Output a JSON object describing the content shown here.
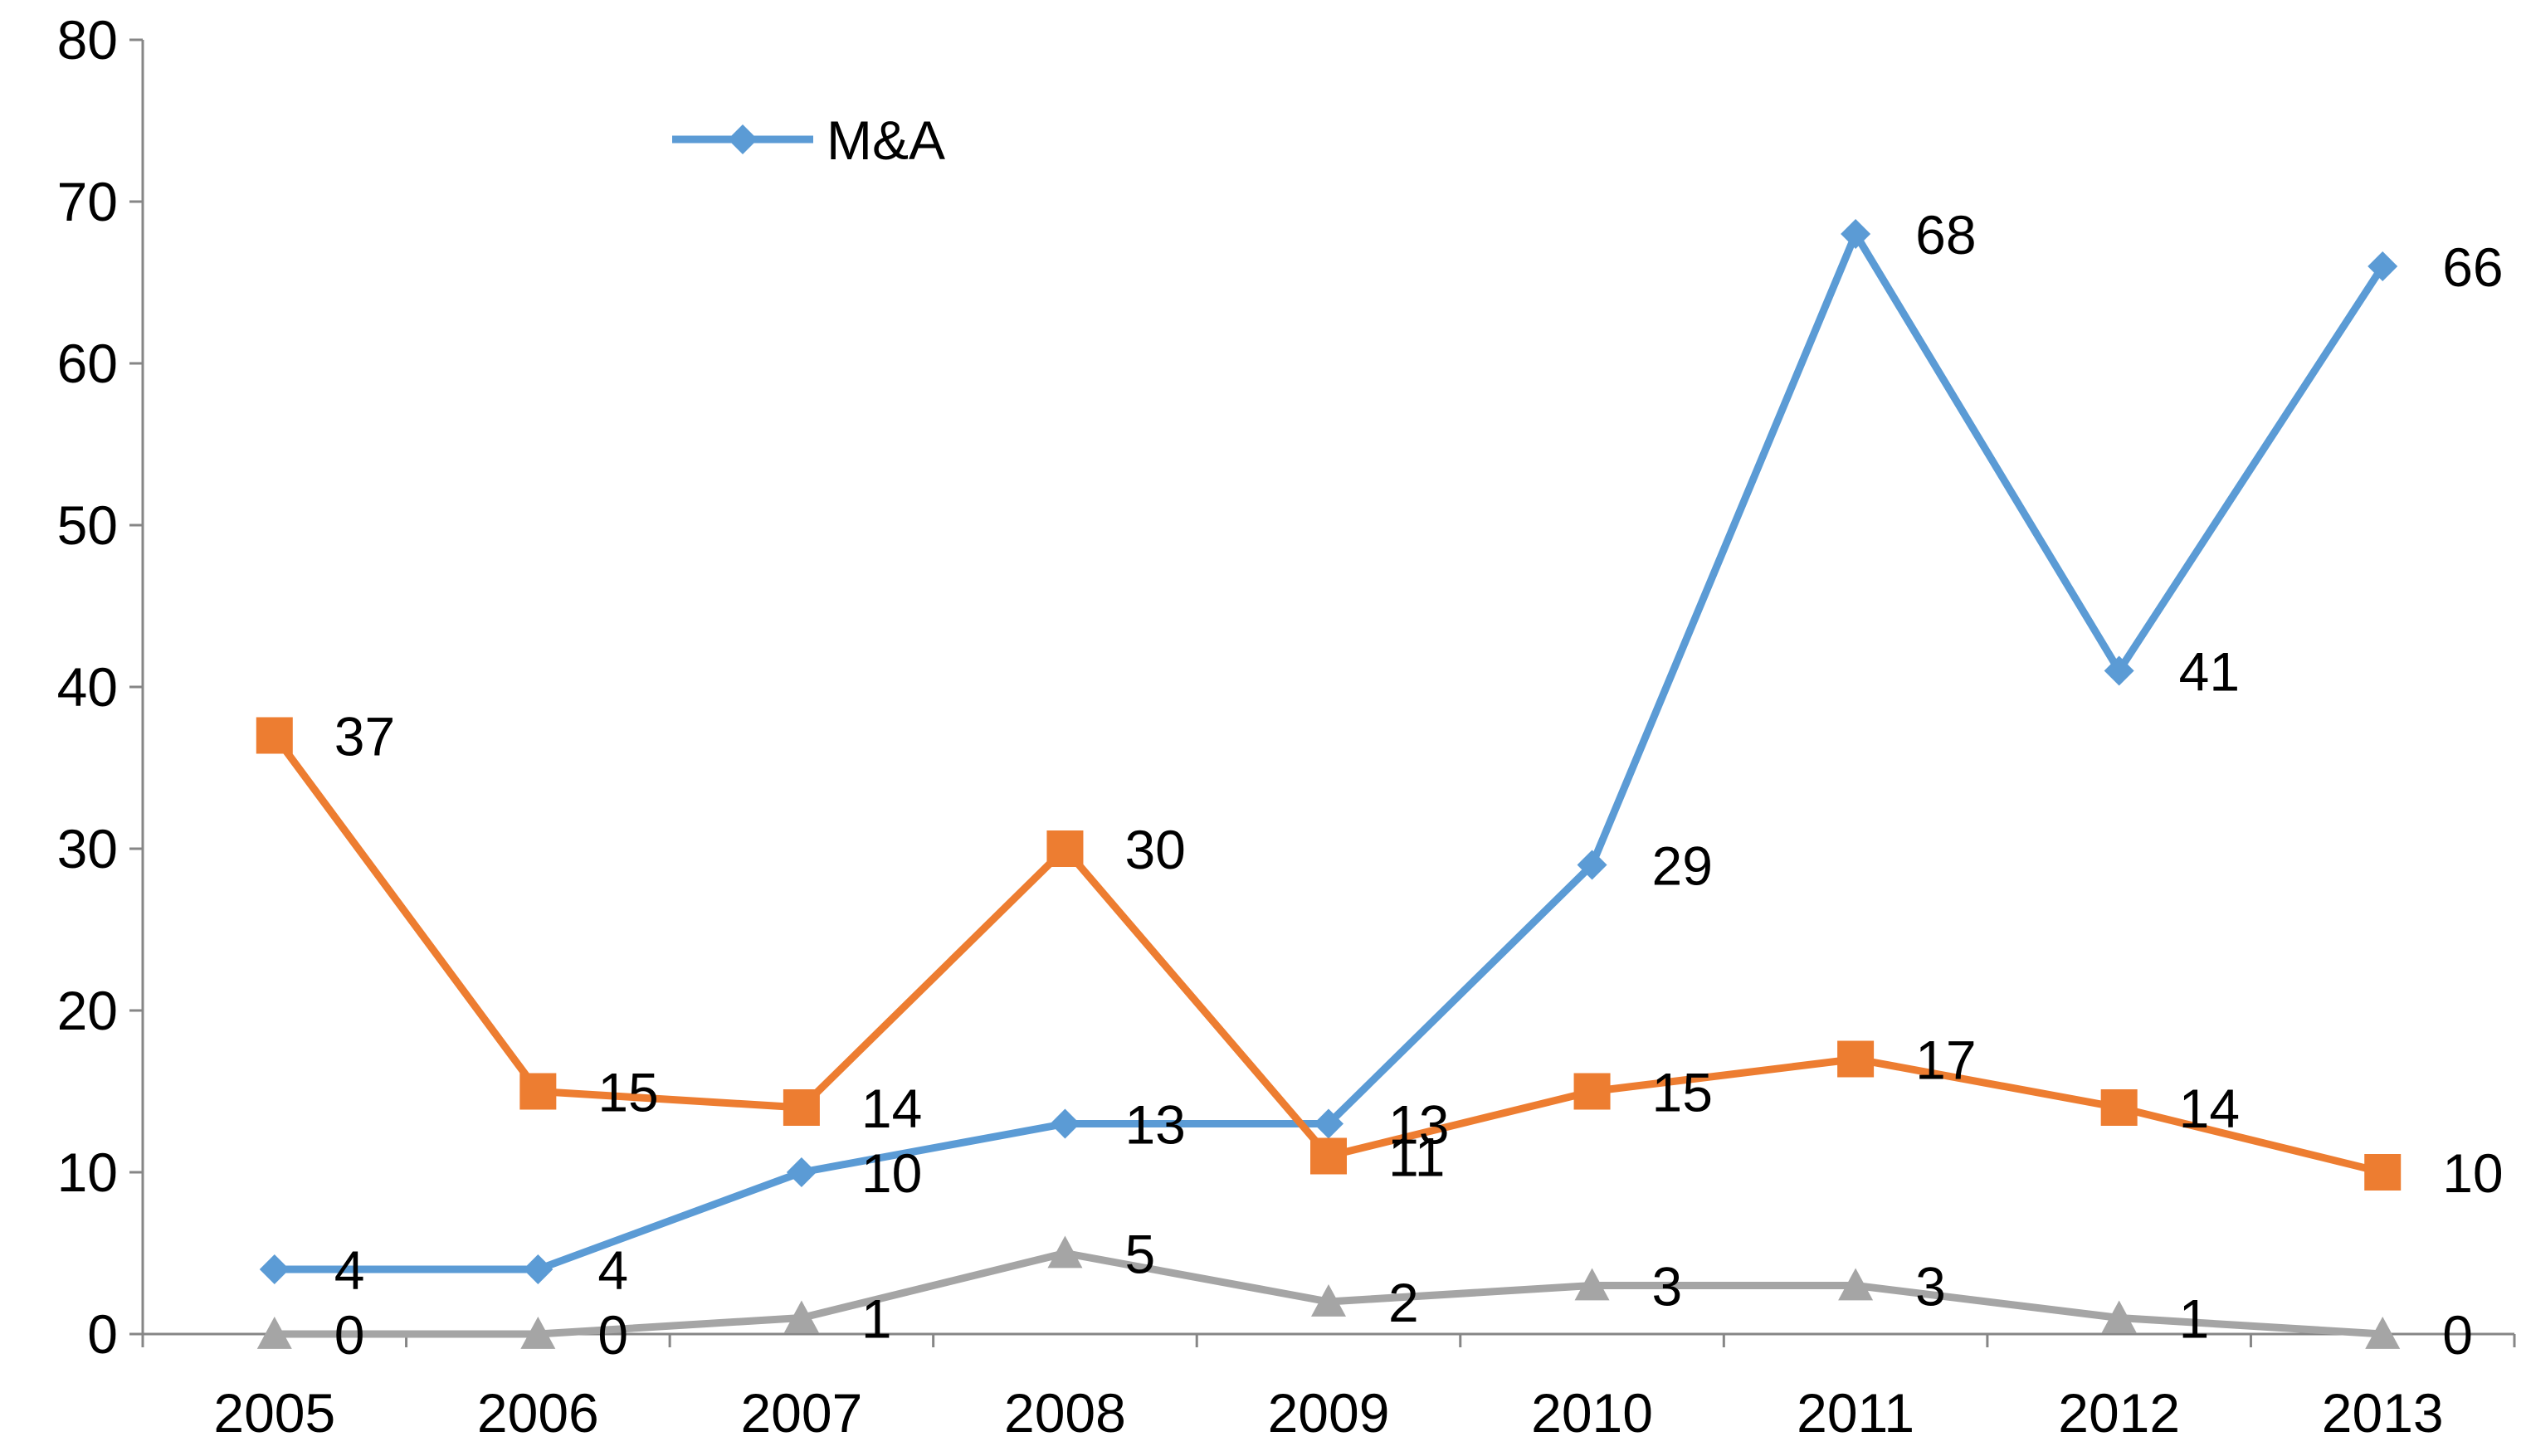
{
  "chart_data": {
    "type": "line",
    "title": "",
    "xlabel": "",
    "ylabel": "",
    "categories": [
      "2005",
      "2006",
      "2007",
      "2008",
      "2009",
      "2010",
      "2011",
      "2012",
      "2013"
    ],
    "ylim": [
      0,
      80
    ],
    "yticks": [
      0,
      10,
      20,
      30,
      40,
      50,
      60,
      70,
      80
    ],
    "ytick_labels": [
      "0",
      "10",
      "20",
      "30",
      "40",
      "50",
      "60",
      "70",
      "80"
    ],
    "grid": false,
    "legend_position": "top-left",
    "series": [
      {
        "name": "M&A",
        "color": "#5B9BD5",
        "marker": "diamond",
        "show_in_legend": true,
        "values": [
          4,
          4,
          10,
          13,
          13,
          29,
          68,
          41,
          66
        ]
      },
      {
        "name": "",
        "color": "#ED7D31",
        "marker": "square",
        "show_in_legend": false,
        "values": [
          37,
          15,
          14,
          30,
          11,
          15,
          17,
          14,
          10
        ]
      },
      {
        "name": "",
        "color": "#A5A5A5",
        "marker": "triangle",
        "show_in_legend": false,
        "values": [
          0,
          0,
          1,
          5,
          2,
          3,
          3,
          1,
          0
        ]
      }
    ]
  }
}
